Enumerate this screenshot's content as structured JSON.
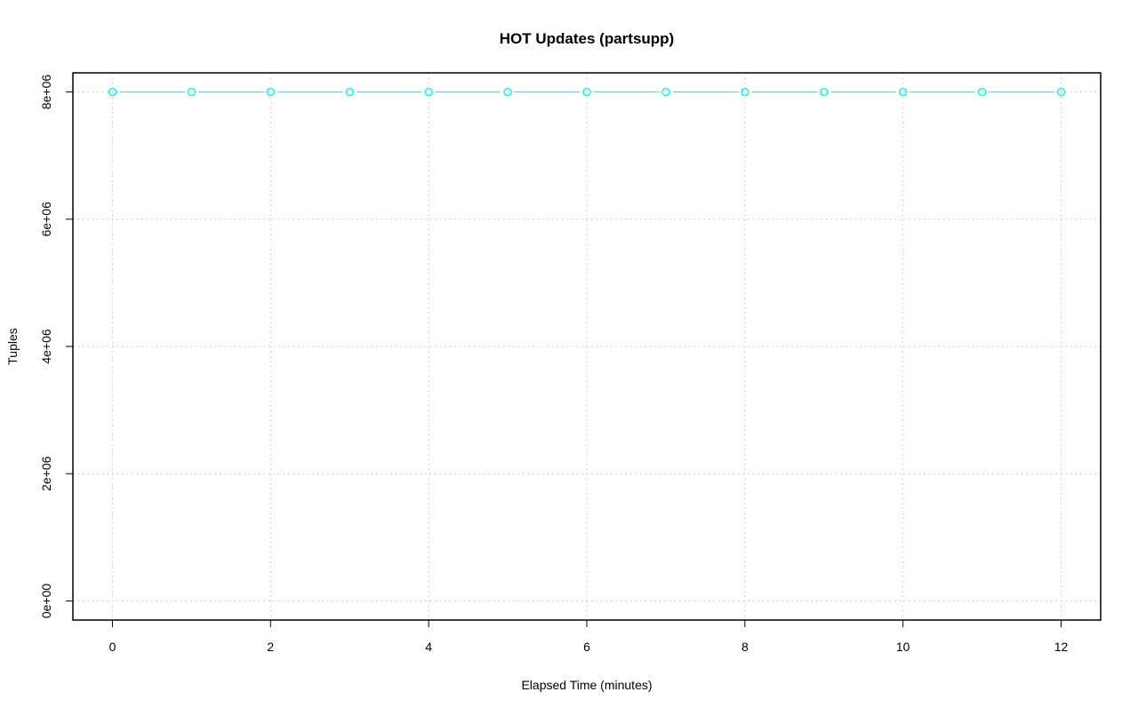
{
  "chart_data": {
    "type": "line",
    "title": "HOT Updates (partsupp)",
    "xlabel": "Elapsed Time (minutes)",
    "ylabel": "Tuples",
    "xlim": [
      -0.5,
      12.5
    ],
    "ylim": [
      -300000,
      8300000
    ],
    "x_ticks": [
      0,
      2,
      4,
      6,
      8,
      10,
      12
    ],
    "x_tick_labels": [
      "0",
      "2",
      "4",
      "6",
      "8",
      "10",
      "12"
    ],
    "y_ticks": [
      0,
      2000000,
      4000000,
      6000000,
      8000000
    ],
    "y_tick_labels": [
      "0e+00",
      "2e+06",
      "4e+06",
      "6e+06",
      "8e+06"
    ],
    "grid": true,
    "series": [
      {
        "color": "#00ffff",
        "marker": "open-circle",
        "x": [
          0,
          1,
          2,
          3,
          4,
          5,
          6,
          7,
          8,
          9,
          10,
          11,
          12
        ],
        "values": [
          8000000,
          8000000,
          8000000,
          8000000,
          8000000,
          8000000,
          8000000,
          8000000,
          8000000,
          8000000,
          8000000,
          8000000,
          8000000
        ]
      }
    ]
  }
}
